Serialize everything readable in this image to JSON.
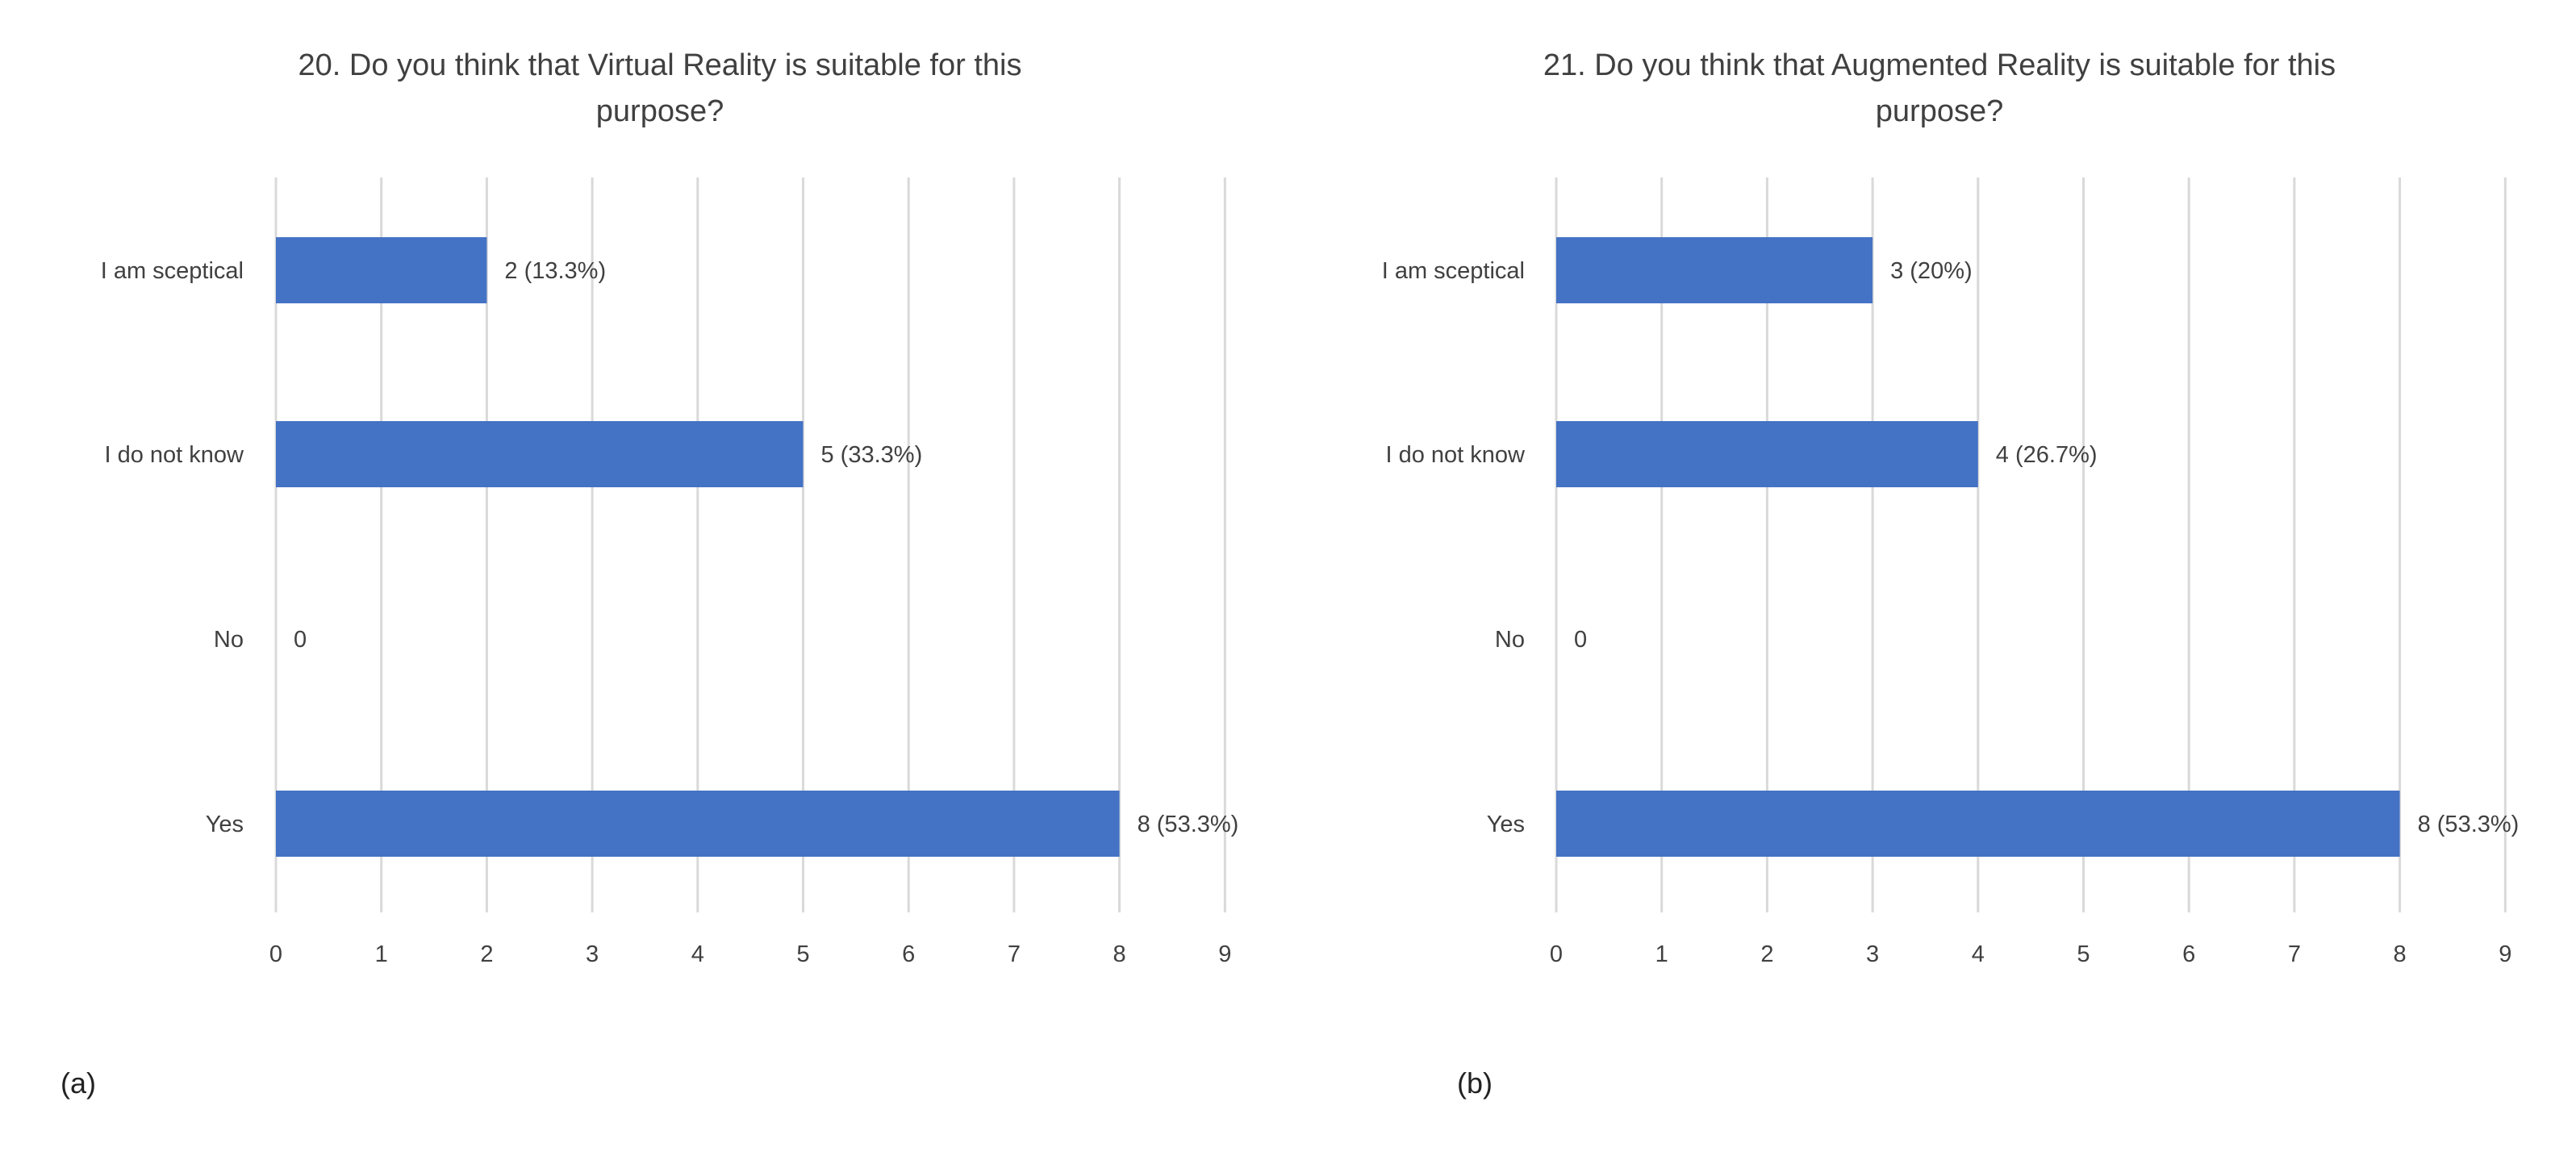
{
  "chart_data": [
    {
      "type": "bar",
      "orientation": "horizontal",
      "panel_label": "(a)",
      "title_lines": [
        "20. Do you think that Virtual Reality is suitable for this",
        "purpose?"
      ],
      "categories": [
        "I am sceptical",
        "I do not know",
        "No",
        "Yes"
      ],
      "values": [
        2,
        5,
        0,
        8
      ],
      "data_labels": [
        "2 (13.3%)",
        "5 (33.3%)",
        "0",
        "8 (53.3%)"
      ],
      "xlim": [
        0,
        9
      ],
      "ticks": [
        0,
        1,
        2,
        3,
        4,
        5,
        6,
        7,
        8,
        9
      ],
      "grid": "vertical",
      "legend": "none",
      "bar_color": "#4472c4"
    },
    {
      "type": "bar",
      "orientation": "horizontal",
      "panel_label": "(b)",
      "title_lines": [
        "21. Do you think that Augmented Reality is suitable for this",
        "purpose?"
      ],
      "categories": [
        "I am sceptical",
        "I do not know",
        "No",
        "Yes"
      ],
      "values": [
        3,
        4,
        0,
        8
      ],
      "data_labels": [
        "3 (20%)",
        "4 (26.7%)",
        "0",
        "8 (53.3%)"
      ],
      "xlim": [
        0,
        9
      ],
      "ticks": [
        0,
        1,
        2,
        3,
        4,
        5,
        6,
        7,
        8,
        9
      ],
      "grid": "vertical",
      "legend": "none",
      "bar_color": "#4472c4"
    }
  ]
}
